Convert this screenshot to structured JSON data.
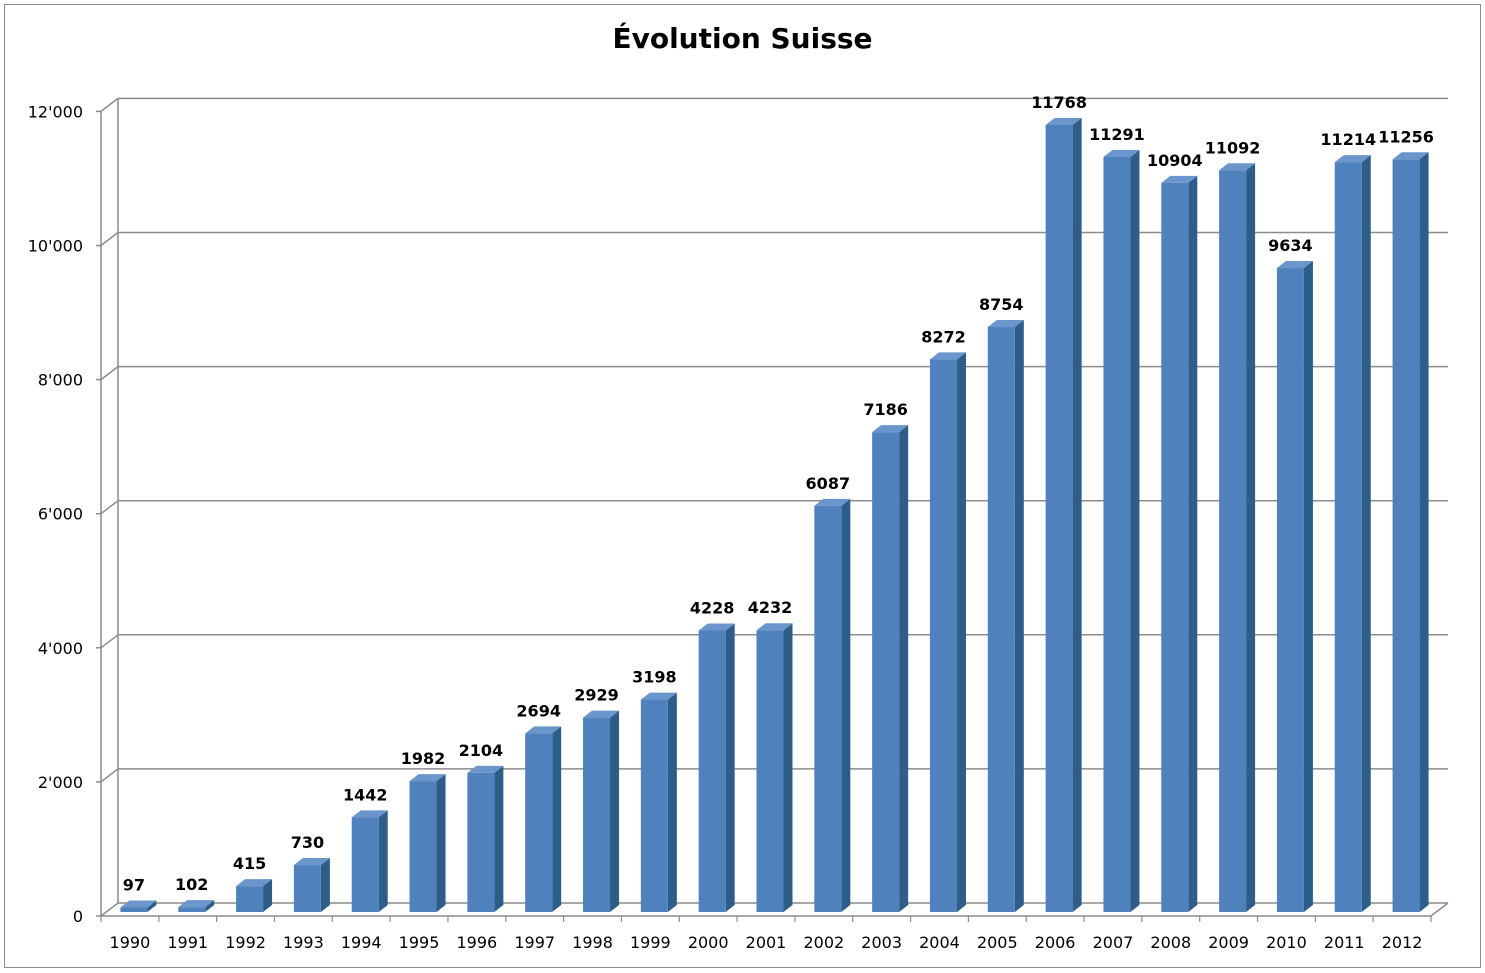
{
  "chart_data": {
    "type": "bar",
    "title": "Évolution Suisse",
    "xlabel": "",
    "ylabel": "",
    "categories": [
      "1990",
      "1991",
      "1992",
      "1993",
      "1994",
      "1995",
      "1996",
      "1997",
      "1998",
      "1999",
      "2000",
      "2001",
      "2002",
      "2003",
      "2004",
      "2005",
      "2006",
      "2007",
      "2008",
      "2009",
      "2010",
      "2011",
      "2012"
    ],
    "values": [
      97,
      102,
      415,
      730,
      1442,
      1982,
      2104,
      2694,
      2929,
      3198,
      4228,
      4232,
      6087,
      7186,
      8272,
      8754,
      11768,
      11291,
      10904,
      11092,
      9634,
      11214,
      11256
    ],
    "ylim": [
      0,
      12000
    ],
    "yticks": [
      0,
      2000,
      4000,
      6000,
      8000,
      10000,
      12000
    ],
    "ytick_labels": [
      "0",
      "2'000",
      "4'000",
      "6'000",
      "8'000",
      "10'000",
      "12'000"
    ],
    "grid": true,
    "legend": "none",
    "style": "3d-column"
  },
  "colors": {
    "bar_front": "#4f81bd",
    "bar_top": "#6a96cc",
    "bar_side": "#2f5d8a",
    "grid": "#8c8c8c"
  }
}
